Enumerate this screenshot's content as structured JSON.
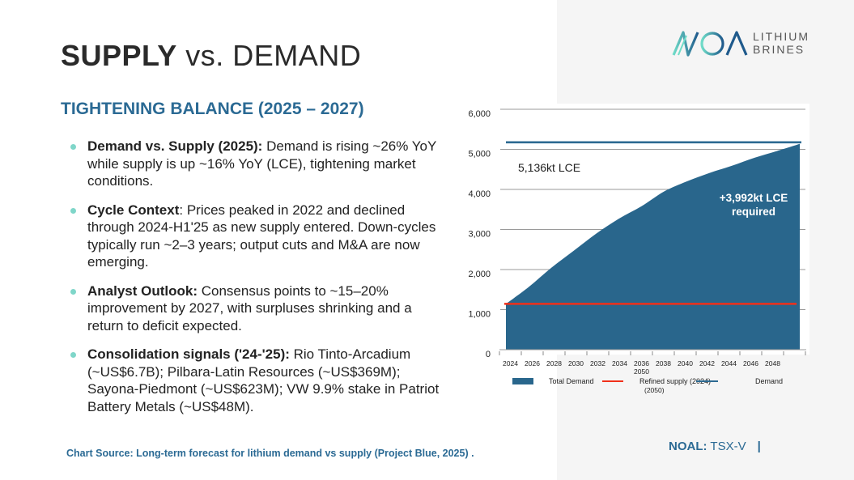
{
  "slide": {
    "title_bold": "SUPPLY",
    "title_light": "vs. DEMAND",
    "subtitle": "TIGHTENING BALANCE (2025 – 2027)",
    "bullets": [
      {
        "head": "Demand vs. Supply (2025):",
        "body": " Demand is rising ~26% YoY while supply is up ~16% YoY (LCE), tightening market conditions."
      },
      {
        "head": "Cycle Context",
        "body": ": Prices peaked in 2022 and declined through 2024-H1'25 as new supply entered. Down-cycles typically run ~2–3 years; output cuts and M&A are now emerging."
      },
      {
        "head": "Analyst Outlook:",
        "body": " Consensus points to ~15–20% improvement by 2027, with surpluses shrinking and a return to deficit expected."
      },
      {
        "head": "Consolidation signals ('24-'25):",
        "body": " Rio Tinto-Arcadium (~US$6.7B); Pilbara-Latin Resources (~US$369M); Sayona-Piedmont (~US$623M); VW 9.9% stake in Patriot Battery Metals (~US$48M)."
      }
    ],
    "source": "Chart Source: Long-term forecast for lithium demand vs supply (Project Blue, 2025) .",
    "ticker_bold": "NOAL:",
    "ticker_rest": "TSX-V",
    "ticker_bar": "|"
  },
  "logo": {
    "line1": "LITHIUM",
    "line2": "BRINES",
    "mark": "NOA"
  },
  "colors": {
    "accent_blue": "#2b6a94",
    "area_fill": "#29668c",
    "supply_red": "#f0301a",
    "demand_line": "#2c6a92",
    "bullet_teal": "#7fd6c9"
  },
  "chart_data": {
    "type": "area",
    "title": "",
    "xlabel": "",
    "ylabel": "",
    "ylim": [
      0,
      6000
    ],
    "yticks": [
      0,
      1000,
      2000,
      3000,
      4000,
      5000,
      6000
    ],
    "ytick_labels": [
      "0",
      "1,000",
      "2,000",
      "3,000",
      "4,000",
      "5,000",
      "6,000"
    ],
    "categories": [
      "2024",
      "2026",
      "2028",
      "2030",
      "2032",
      "2034",
      "2036",
      "2038",
      "2040",
      "2042",
      "2044",
      "2046",
      "2048",
      "2050"
    ],
    "category_labels": [
      "2024",
      "2026",
      "2028",
      "2030",
      "2032",
      "2034",
      "2036",
      "2038",
      "2040",
      "2042",
      "2044",
      "2046",
      "2048"
    ],
    "extra_label": "2050",
    "grid": true,
    "series": [
      {
        "name": "Total Demand",
        "type": "area",
        "values": [
          1144,
          1560,
          2040,
          2470,
          2900,
          3270,
          3580,
          3950,
          4200,
          4410,
          4590,
          4790,
          4960,
          5136
        ]
      },
      {
        "name": "Refined supply (2024)",
        "type": "line",
        "value": 1144
      },
      {
        "name": "Demand (2050)",
        "type": "line",
        "value": 5136
      }
    ],
    "annotations": [
      {
        "text": "5,136kt LCE",
        "color": "dark"
      },
      {
        "text_line1": "+3,992kt LCE",
        "text_line2": "required",
        "color": "white"
      }
    ],
    "legend": {
      "placement": "bottom",
      "items": [
        {
          "label": "Total Demand",
          "kind": "box"
        },
        {
          "label": "Refined supply (2024)",
          "kind": "line-red"
        },
        {
          "label": "Demand",
          "kind": "line-blue"
        }
      ],
      "wrap_label": "(2050)"
    }
  }
}
